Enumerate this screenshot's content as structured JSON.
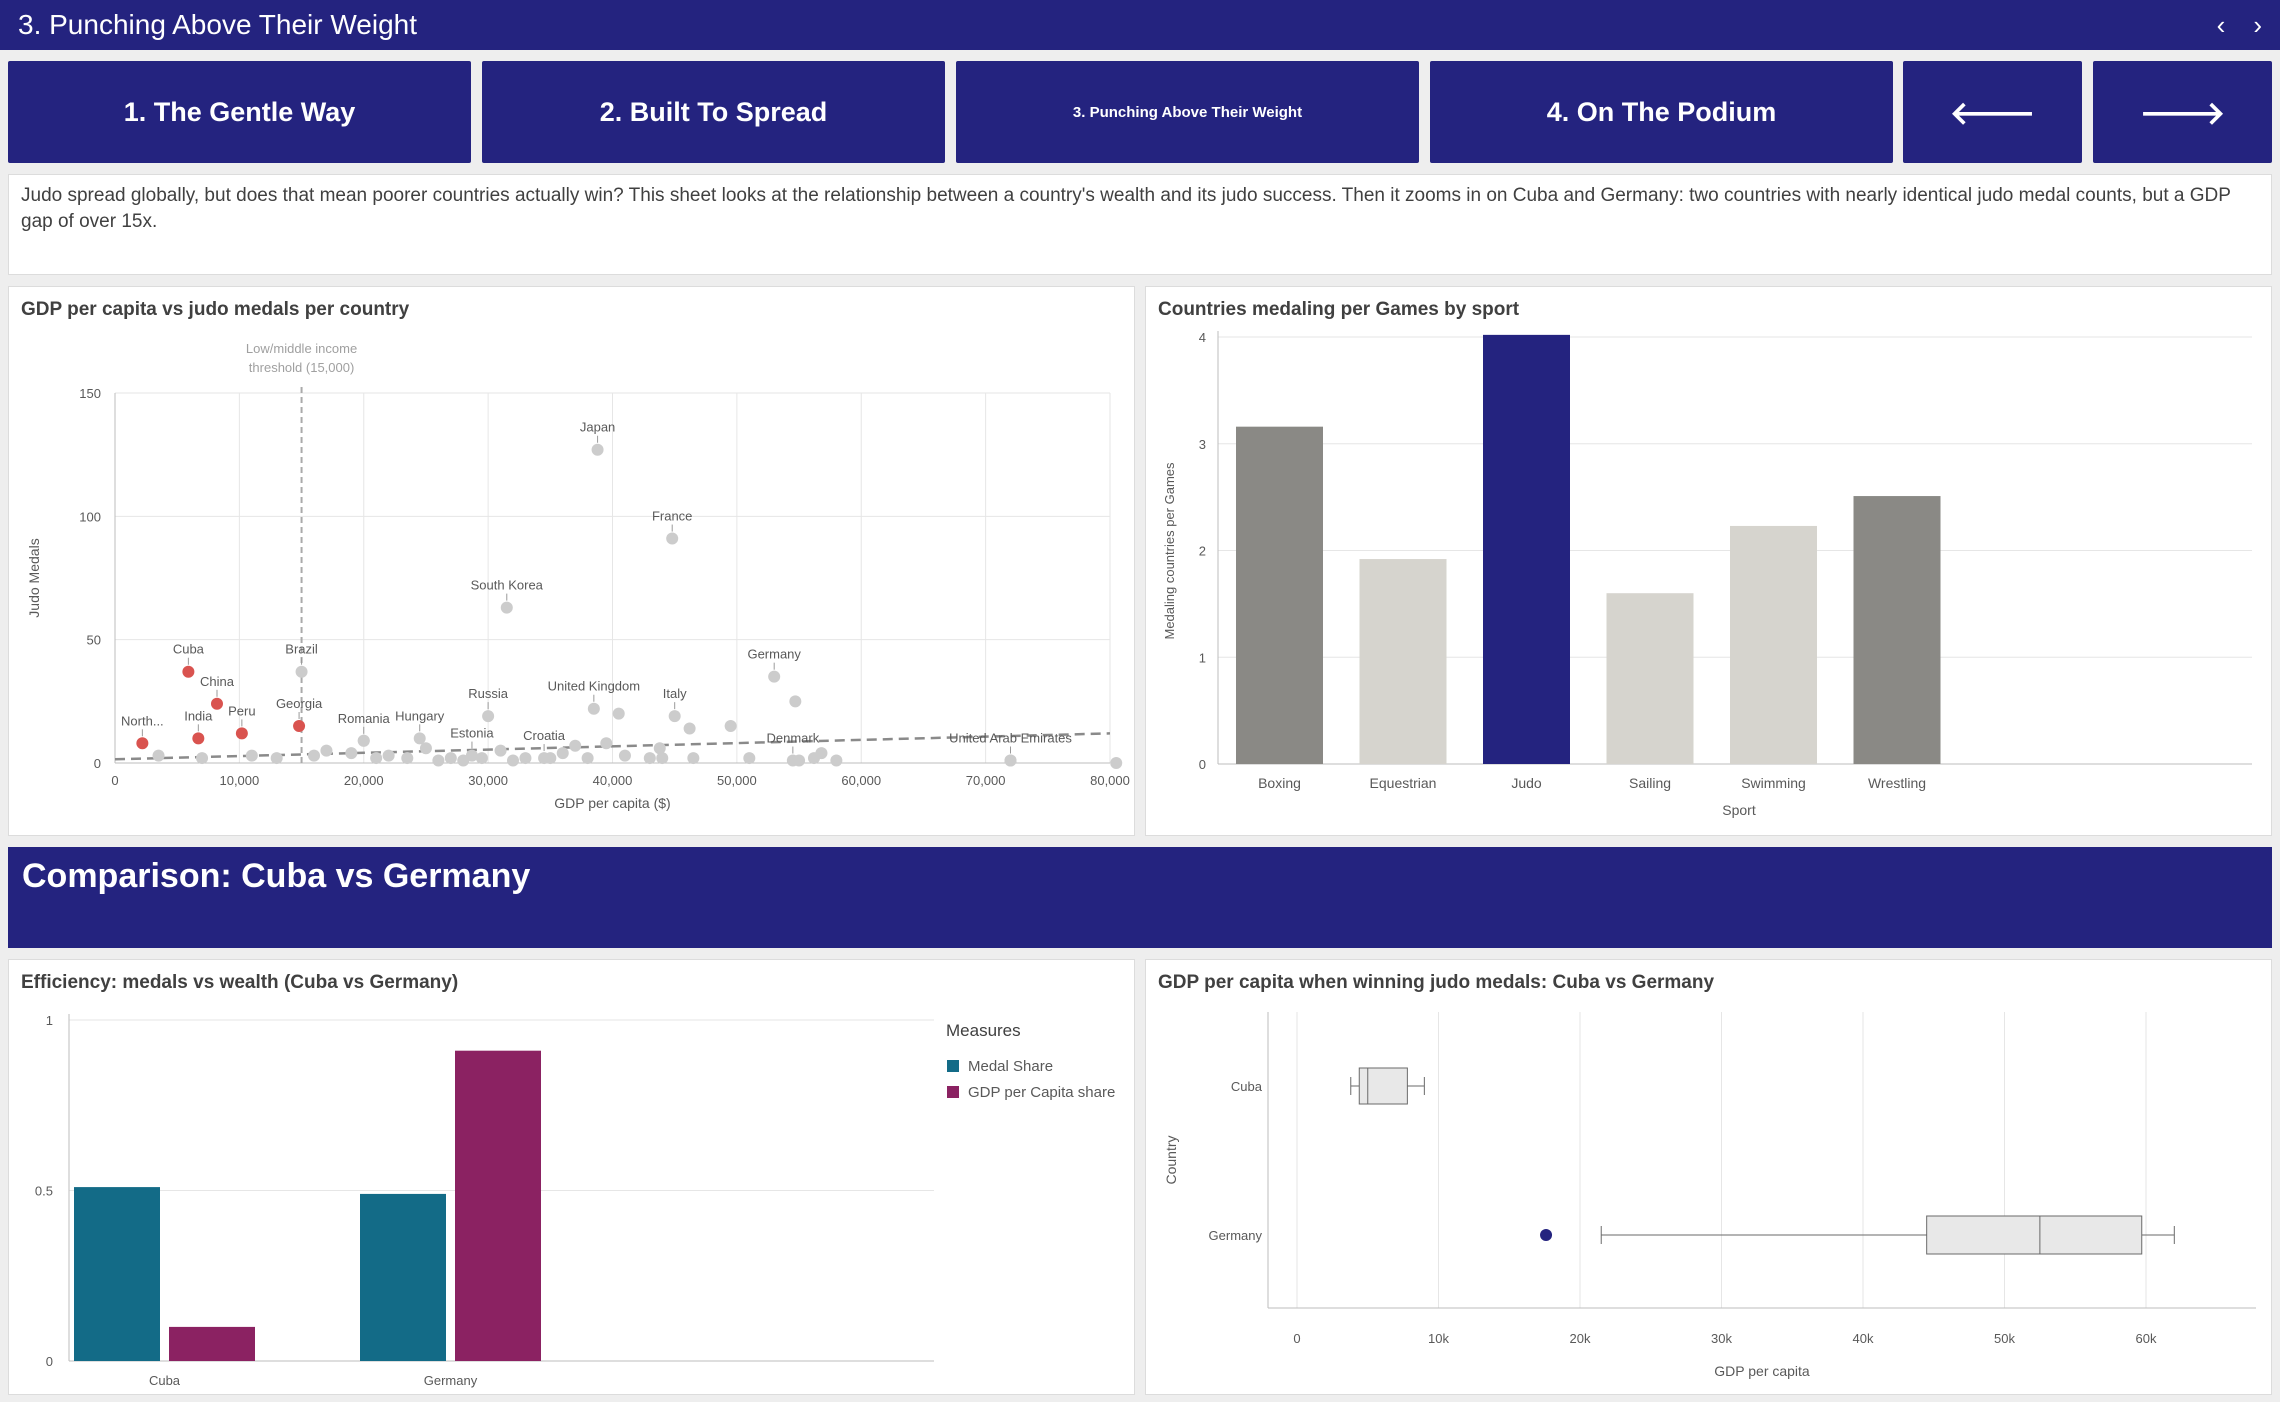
{
  "header": {
    "title": "3. Punching Above Their Weight",
    "prev_icon": "chevron-left-icon",
    "next_icon": "chevron-right-icon"
  },
  "nav": {
    "btn1": "1. The Gentle Way",
    "btn2": "2. Built To Spread",
    "btn3": "3. Punching Above Their Weight",
    "btn4": "4. On The Podium",
    "back_icon": "arrow-left-icon",
    "forward_icon": "arrow-right-icon"
  },
  "description": "Judo spread globally, but does that mean poorer countries actually win? This sheet looks at the relationship between a country's wealth and its judo success. Then it zooms in on Cuba and Germany: two countries with nearly identical judo medal counts, but a GDP gap of over 15x.",
  "scatter": {
    "title": "GDP per capita vs judo medals per country"
  },
  "bars": {
    "title": "Countries medaling per Games by sport"
  },
  "banner": {
    "title": "Comparison: Cuba vs Germany"
  },
  "efficiency": {
    "title": "Efficiency: medals vs wealth (Cuba vs Germany)"
  },
  "boxplot": {
    "title": "GDP per capita when winning judo medals: Cuba vs Germany"
  },
  "colors": {
    "navy": "#24237f",
    "red": "#d9534f",
    "grey": "#cccccc",
    "teal": "#136b87",
    "purple": "#8b2262",
    "darkgrey": "#8a8985",
    "lightgrey": "#d6d4ce"
  },
  "chart_data": [
    {
      "type": "scatter",
      "title": "GDP per capita vs judo medals per country",
      "xlabel": "GDP per capita ($)",
      "ylabel": "Judo Medals",
      "xlim": [
        0,
        80000
      ],
      "ylim": [
        0,
        150
      ],
      "xticks": [
        "0",
        "10,000",
        "20,000",
        "30,000",
        "40,000",
        "50,000",
        "60,000",
        "70,000",
        "80,000"
      ],
      "yticks": [
        "0",
        "50",
        "100",
        "150"
      ],
      "reference_line": {
        "x": 15000,
        "label": "Low/middle income threshold (15,000)"
      },
      "trend_line": true,
      "labeled_points": [
        {
          "name": "Japan",
          "x": 38800,
          "y": 127,
          "low_income": false
        },
        {
          "name": "France",
          "x": 44800,
          "y": 91,
          "low_income": false
        },
        {
          "name": "South Korea",
          "x": 31500,
          "y": 63,
          "low_income": false
        },
        {
          "name": "Cuba",
          "x": 5900,
          "y": 37,
          "low_income": true
        },
        {
          "name": "Brazil",
          "x": 15000,
          "y": 37,
          "low_income": false
        },
        {
          "name": "Germany",
          "x": 53000,
          "y": 35,
          "low_income": false
        },
        {
          "name": "China",
          "x": 8200,
          "y": 24,
          "low_income": true
        },
        {
          "name": "Georgia",
          "x": 14800,
          "y": 15,
          "low_income": true
        },
        {
          "name": "Russia",
          "x": 30000,
          "y": 19,
          "low_income": false
        },
        {
          "name": "United Kingdom",
          "x": 38500,
          "y": 22,
          "low_income": false
        },
        {
          "name": "Italy",
          "x": 45000,
          "y": 19,
          "low_income": false
        },
        {
          "name": "Romania",
          "x": 20000,
          "y": 9,
          "low_income": false
        },
        {
          "name": "Hungary",
          "x": 24500,
          "y": 10,
          "low_income": false
        },
        {
          "name": "Estonia",
          "x": 28700,
          "y": 3,
          "low_income": false
        },
        {
          "name": "Croatia",
          "x": 34500,
          "y": 2,
          "low_income": false
        },
        {
          "name": "Denmark",
          "x": 54500,
          "y": 1,
          "low_income": false
        },
        {
          "name": "United Arab Emirates",
          "x": 72000,
          "y": 1,
          "low_income": false
        },
        {
          "name": "North...",
          "x": 2200,
          "y": 8,
          "low_income": true
        },
        {
          "name": "India",
          "x": 6700,
          "y": 10,
          "low_income": true
        },
        {
          "name": "Peru",
          "x": 10200,
          "y": 12,
          "low_income": true
        }
      ],
      "other_points": [
        [
          3500,
          3
        ],
        [
          7000,
          2
        ],
        [
          11000,
          3
        ],
        [
          13000,
          2
        ],
        [
          16000,
          3
        ],
        [
          17000,
          5
        ],
        [
          19000,
          4
        ],
        [
          20000,
          9
        ],
        [
          21000,
          2
        ],
        [
          22000,
          3
        ],
        [
          23500,
          2
        ],
        [
          25000,
          6
        ],
        [
          26000,
          1
        ],
        [
          27000,
          2
        ],
        [
          28000,
          1
        ],
        [
          29500,
          2
        ],
        [
          31000,
          5
        ],
        [
          32000,
          1
        ],
        [
          33000,
          2
        ],
        [
          35000,
          2
        ],
        [
          36000,
          4
        ],
        [
          37000,
          7
        ],
        [
          38000,
          2
        ],
        [
          39500,
          8
        ],
        [
          40500,
          20
        ],
        [
          41000,
          3
        ],
        [
          43000,
          2
        ],
        [
          43800,
          6
        ],
        [
          44000,
          2
        ],
        [
          46200,
          14
        ],
        [
          46500,
          2
        ],
        [
          49500,
          15
        ],
        [
          51000,
          2
        ],
        [
          54700,
          25
        ],
        [
          55000,
          1
        ],
        [
          56200,
          2
        ],
        [
          56800,
          4
        ],
        [
          58000,
          1
        ],
        [
          72000,
          1
        ],
        [
          80500,
          0
        ]
      ]
    },
    {
      "type": "bar",
      "title": "Countries medaling per Games by sport",
      "xlabel": "Sport",
      "ylabel": "Medaling countries per Games",
      "ylim": [
        0,
        4
      ],
      "yticks": [
        "0",
        "1",
        "2",
        "3",
        "4"
      ],
      "categories": [
        "Boxing",
        "Equestrian",
        "Judo",
        "Sailing",
        "Swimming",
        "Wrestling"
      ],
      "values": [
        3.16,
        1.92,
        4.02,
        1.6,
        2.23,
        2.51
      ]
    },
    {
      "type": "bar",
      "title": "Efficiency: medals vs wealth (Cuba vs Germany)",
      "categories": [
        "Cuba",
        "Germany"
      ],
      "ylim": [
        0,
        1
      ],
      "yticks": [
        "0",
        "0.5",
        "1"
      ],
      "legend_title": "Measures",
      "series": [
        {
          "name": "Medal Share",
          "values": [
            0.51,
            0.49
          ]
        },
        {
          "name": "GDP per Capita share",
          "values": [
            0.1,
            0.91
          ]
        }
      ]
    },
    {
      "type": "box",
      "title": "GDP per capita when winning judo medals: Cuba vs Germany",
      "xlabel": "GDP per capita",
      "ylabel": "Country",
      "xticks": [
        "0",
        "10k",
        "20k",
        "30k",
        "40k",
        "50k",
        "60k"
      ],
      "categories": [
        "Cuba",
        "Germany"
      ],
      "boxes": [
        {
          "name": "Cuba",
          "min": 3800,
          "q1": 4400,
          "median": 5000,
          "q3": 7800,
          "max": 9000,
          "outliers": []
        },
        {
          "name": "Germany",
          "min": 21500,
          "q1": 44500,
          "median": 52500,
          "q3": 59700,
          "max": 62000,
          "outliers": [
            17600
          ]
        }
      ]
    }
  ]
}
